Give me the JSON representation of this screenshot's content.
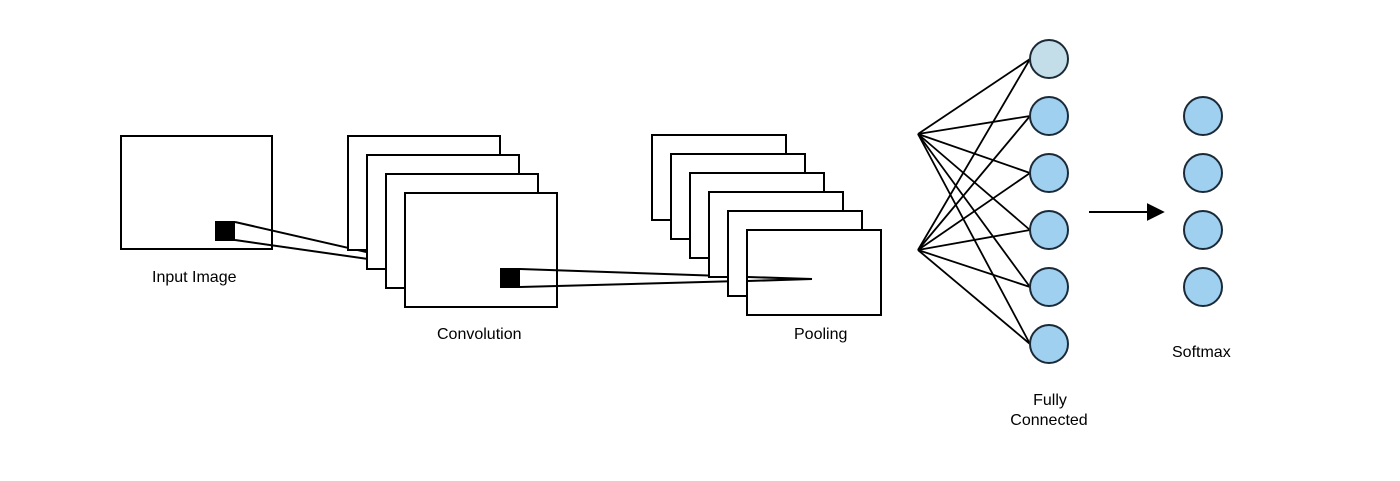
{
  "labels": {
    "input": "Input Image",
    "convolution": "Convolution",
    "pooling": "Pooling",
    "fully_connected_line1": "Fully",
    "fully_connected_line2": "Connected",
    "softmax": "Softmax"
  },
  "colors": {
    "node_fill": "#9fd0f0",
    "node_fill_top": "#c3dde9",
    "node_stroke": "#1b2a38",
    "line": "#000000"
  },
  "layers": {
    "convolution_maps": 4,
    "pooling_maps": 6,
    "fully_connected_nodes": 6,
    "softmax_nodes": 4
  }
}
